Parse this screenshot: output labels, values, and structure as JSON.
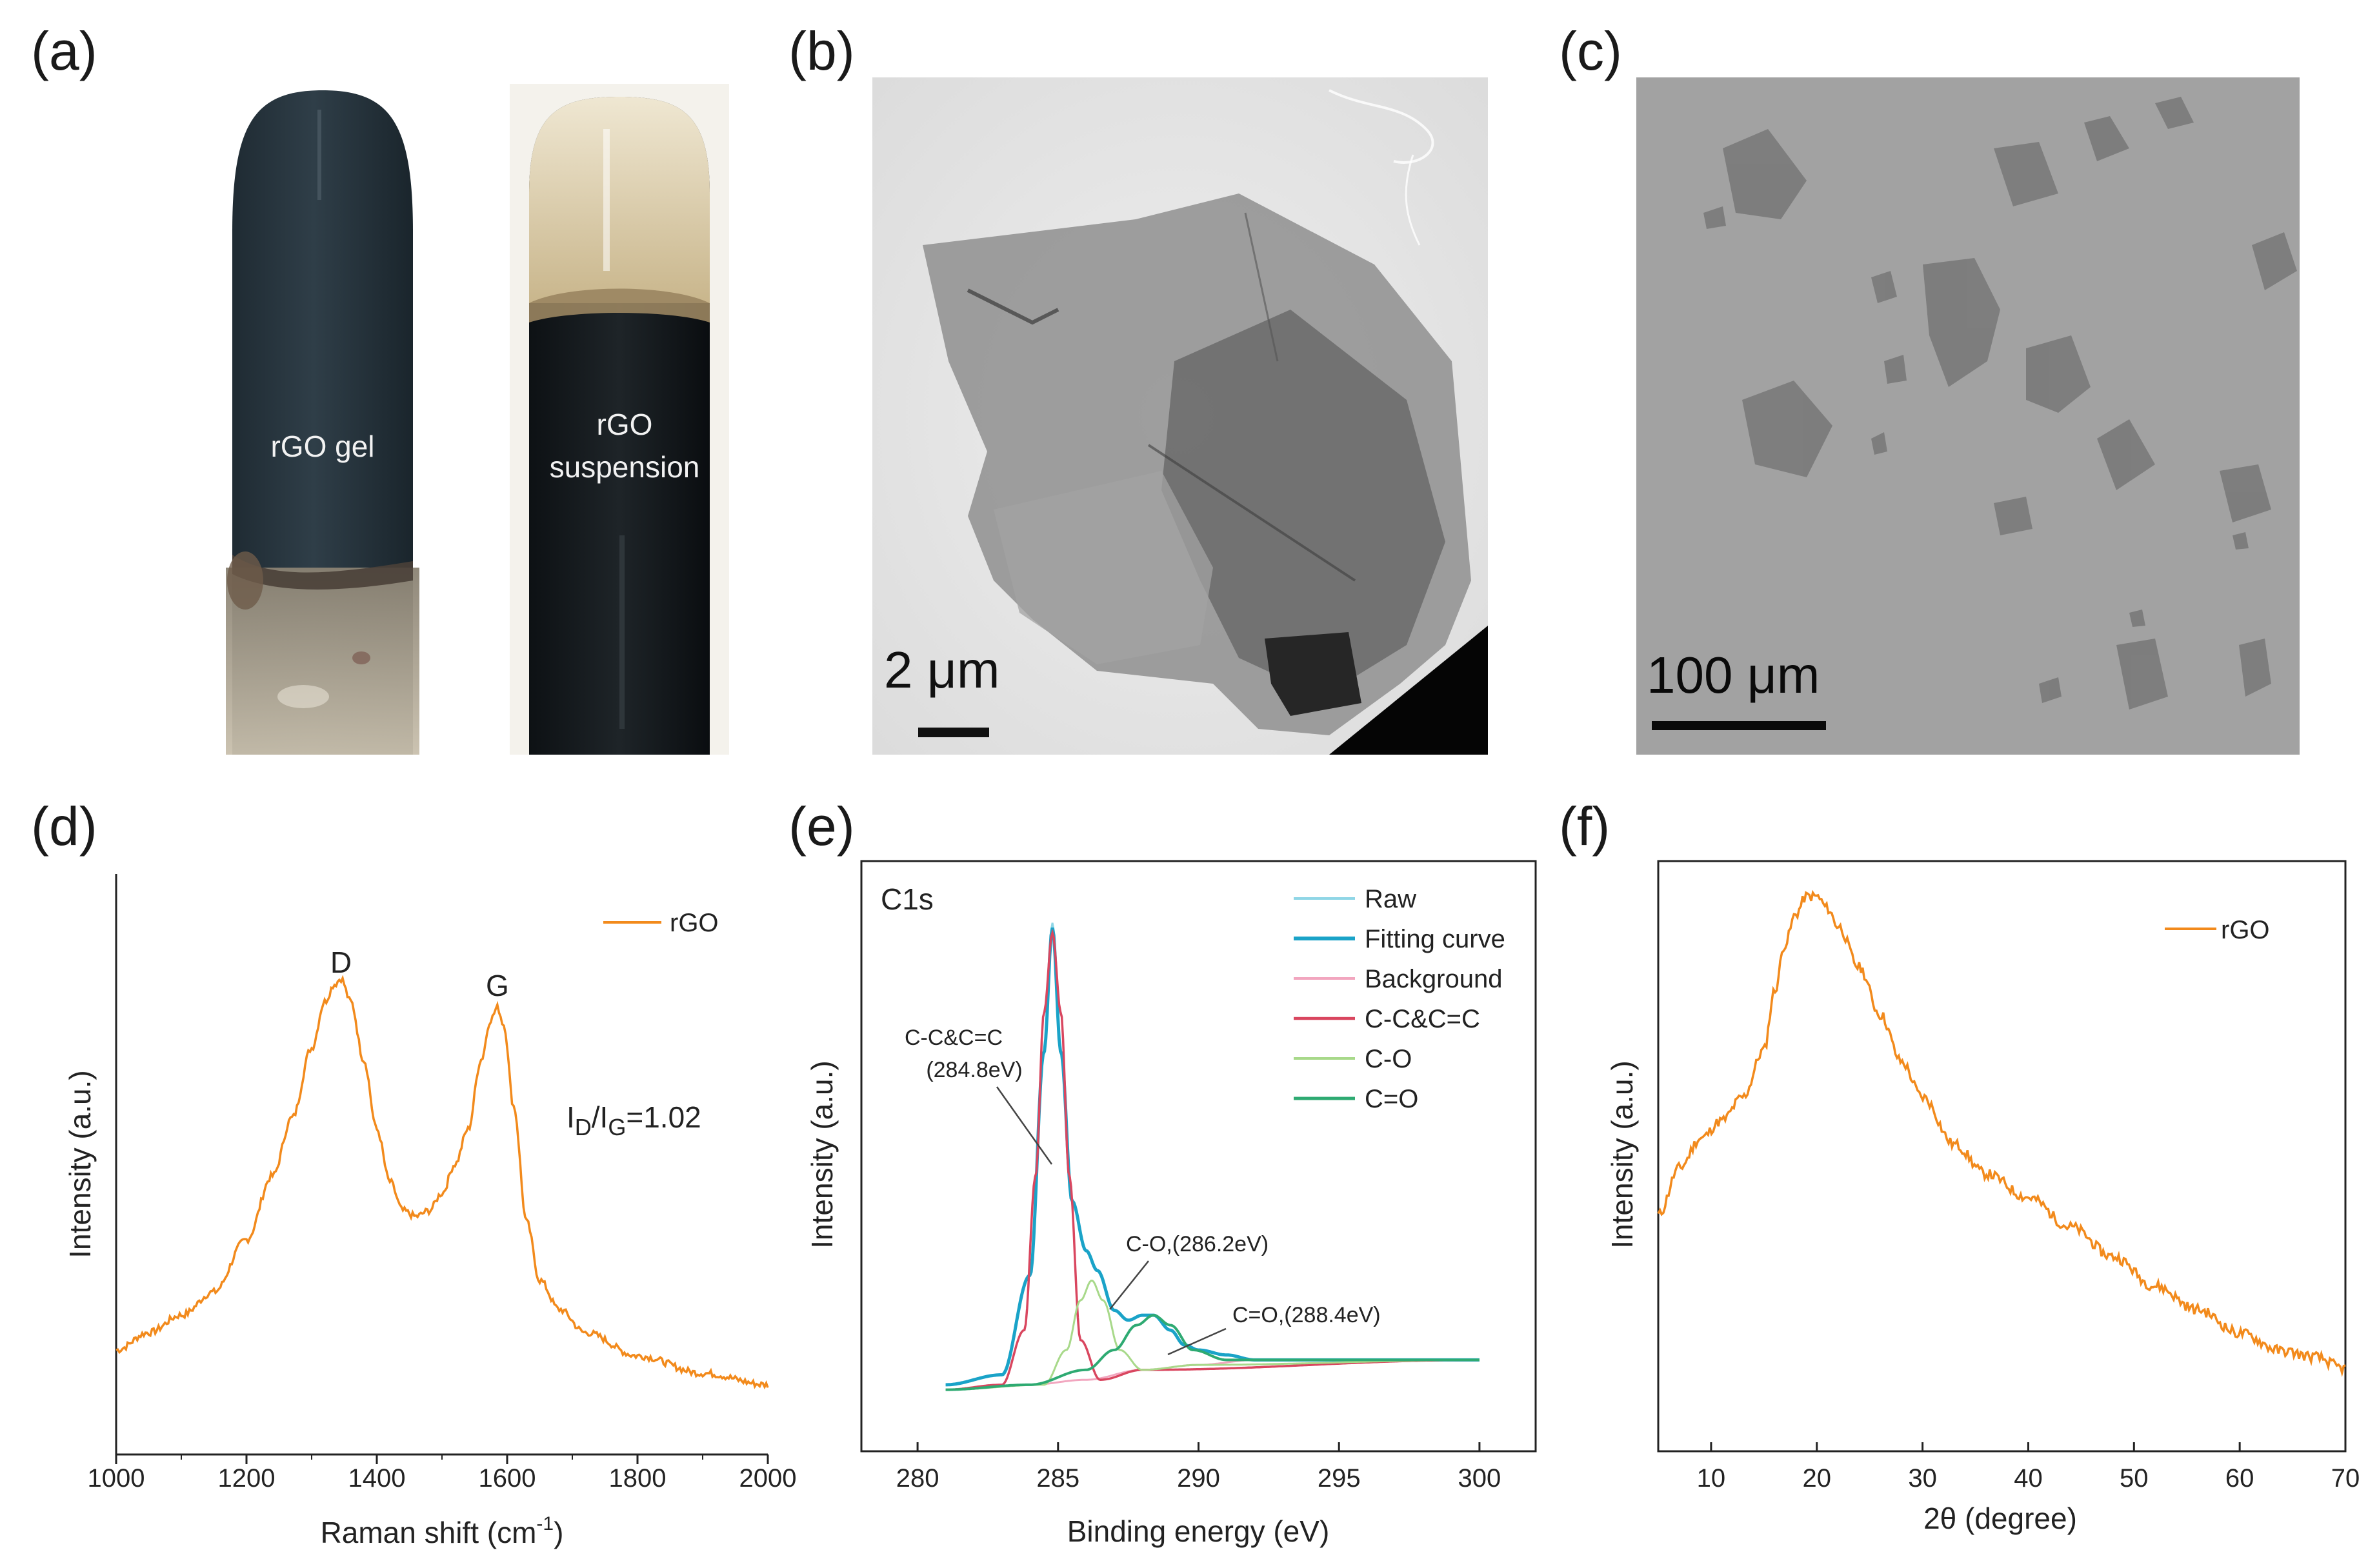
{
  "figure": {
    "panel_labels": {
      "a": "(a)",
      "b": "(b)",
      "c": "(c)",
      "d": "(d)",
      "e": "(e)",
      "f": "(f)"
    },
    "panel_a": {
      "left_vial_label": "rGO gel",
      "right_vial_label_line1": "rGO",
      "right_vial_label_line2": "suspension"
    },
    "panel_b": {
      "scale_bar": "2 μm"
    },
    "panel_c": {
      "scale_bar": "100 μm"
    },
    "colors": {
      "orange": "#f28a1c",
      "raw": "#8fd6e6",
      "fitting": "#1aa3c8",
      "background": "#f2a6bf",
      "cc": "#d9465f",
      "co": "#a8d98a",
      "cdo": "#2eaa72"
    }
  },
  "chart_data": [
    {
      "panel": "d",
      "type": "line",
      "title": "",
      "xlabel": "Raman shift (cm",
      "xlabel_sup": "-1",
      "xlabel_close": ")",
      "ylabel": "Intensity (a.u.)",
      "xlim": [
        1000,
        2000
      ],
      "ylim": [
        0,
        1
      ],
      "xticks": [
        "1000",
        "1200",
        "1400",
        "1600",
        "1800",
        "2000"
      ],
      "xtick_values": [
        1000,
        1200,
        1400,
        1600,
        1800,
        2000
      ],
      "legend": [
        "rGO"
      ],
      "peak_labels": [
        {
          "text": "D",
          "x": 1345,
          "y": 0.83
        },
        {
          "text": "G",
          "x": 1585,
          "y": 0.79
        }
      ],
      "ratio_label": {
        "I": "I",
        "sub1": "D",
        "slash": "/I",
        "sub2": "G",
        "value": "=1.02"
      },
      "series": [
        {
          "name": "rGO",
          "x": [
            1000,
            1050,
            1100,
            1150,
            1200,
            1240,
            1270,
            1300,
            1320,
            1335,
            1345,
            1360,
            1380,
            1400,
            1420,
            1440,
            1460,
            1480,
            1500,
            1520,
            1540,
            1560,
            1575,
            1585,
            1595,
            1610,
            1630,
            1650,
            1680,
            1720,
            1800,
            1900,
            2000
          ],
          "y": [
            0.18,
            0.21,
            0.24,
            0.28,
            0.37,
            0.48,
            0.58,
            0.7,
            0.78,
            0.81,
            0.82,
            0.78,
            0.68,
            0.56,
            0.47,
            0.42,
            0.41,
            0.42,
            0.45,
            0.5,
            0.56,
            0.68,
            0.75,
            0.77,
            0.74,
            0.6,
            0.4,
            0.3,
            0.25,
            0.21,
            0.17,
            0.14,
            0.12
          ]
        }
      ]
    },
    {
      "panel": "e",
      "type": "line",
      "title": "C1s",
      "xlabel": "Binding energy (eV)",
      "ylabel": "Intensity (a.u.)",
      "xlim": [
        278,
        302
      ],
      "ylim": [
        0,
        1
      ],
      "xticks": [
        "280",
        "285",
        "290",
        "295",
        "300"
      ],
      "xtick_values": [
        280,
        285,
        290,
        295,
        300
      ],
      "legend": [
        "Raw",
        "Fitting curve",
        "Background",
        "C-C&C=C",
        "C-O",
        "C=O"
      ],
      "annotations": [
        {
          "line1": "C-C&C=C",
          "line2": "(284.8eV)"
        },
        {
          "line1": "C-O,(286.2eV)"
        },
        {
          "line1": "C=O,(288.4eV)"
        }
      ],
      "series": [
        {
          "name": "Raw",
          "x": [
            281,
            283,
            284,
            284.5,
            284.8,
            285.1,
            285.5,
            286,
            286.4,
            287,
            287.5,
            288,
            288.4,
            289,
            289.5,
            290,
            291,
            292,
            294,
            297,
            300
          ],
          "y": [
            0.03,
            0.05,
            0.25,
            0.7,
            0.96,
            0.7,
            0.4,
            0.3,
            0.26,
            0.18,
            0.16,
            0.17,
            0.17,
            0.14,
            0.11,
            0.1,
            0.09,
            0.08,
            0.08,
            0.08,
            0.08
          ]
        },
        {
          "name": "Fitting curve",
          "x": [
            281,
            283,
            284,
            284.5,
            284.8,
            285.1,
            285.5,
            286,
            286.4,
            287,
            287.5,
            288,
            288.4,
            289,
            289.5,
            290,
            291,
            292,
            294,
            297,
            300
          ],
          "y": [
            0.03,
            0.05,
            0.25,
            0.7,
            0.95,
            0.7,
            0.4,
            0.3,
            0.26,
            0.18,
            0.16,
            0.17,
            0.17,
            0.14,
            0.11,
            0.1,
            0.09,
            0.08,
            0.08,
            0.08,
            0.08
          ]
        },
        {
          "name": "Background",
          "x": [
            281,
            284,
            286,
            288,
            290,
            292,
            295,
            300
          ],
          "y": [
            0.02,
            0.03,
            0.04,
            0.06,
            0.07,
            0.08,
            0.08,
            0.08
          ]
        },
        {
          "name": "C-C&C=C",
          "x": [
            281,
            283,
            283.8,
            284.2,
            284.5,
            284.8,
            285.1,
            285.4,
            285.8,
            286.5,
            288,
            300
          ],
          "y": [
            0.02,
            0.03,
            0.14,
            0.45,
            0.78,
            0.94,
            0.78,
            0.45,
            0.12,
            0.04,
            0.06,
            0.08
          ]
        },
        {
          "name": "C-O",
          "x": [
            281,
            284.5,
            285.3,
            285.8,
            286.2,
            286.6,
            287.2,
            288,
            290,
            300
          ],
          "y": [
            0.02,
            0.03,
            0.1,
            0.2,
            0.24,
            0.2,
            0.1,
            0.06,
            0.07,
            0.08
          ]
        },
        {
          "name": "C=O",
          "x": [
            281,
            284,
            286,
            287,
            287.8,
            288.4,
            289,
            289.8,
            291,
            300
          ],
          "y": [
            0.02,
            0.03,
            0.06,
            0.1,
            0.15,
            0.17,
            0.15,
            0.1,
            0.08,
            0.08
          ]
        }
      ]
    },
    {
      "panel": "f",
      "type": "line",
      "title": "",
      "xlabel": "2θ (degree)",
      "ylabel": "Intensity (a.u.)",
      "xlim": [
        5,
        70
      ],
      "ylim": [
        0,
        1
      ],
      "xticks": [
        "10",
        "20",
        "30",
        "40",
        "50",
        "60",
        "70"
      ],
      "xtick_values": [
        10,
        20,
        30,
        40,
        50,
        60,
        70
      ],
      "legend": [
        "rGO"
      ],
      "series": [
        {
          "name": "rGO",
          "x": [
            5,
            7,
            9,
            11,
            13,
            15,
            16,
            17,
            18,
            19,
            20,
            21,
            22,
            24,
            26,
            28,
            30,
            33,
            36,
            40,
            44,
            48,
            52,
            56,
            60,
            64,
            67,
            70
          ],
          "y": [
            0.4,
            0.48,
            0.53,
            0.56,
            0.6,
            0.68,
            0.78,
            0.86,
            0.91,
            0.94,
            0.94,
            0.92,
            0.89,
            0.82,
            0.74,
            0.66,
            0.6,
            0.52,
            0.47,
            0.43,
            0.38,
            0.33,
            0.28,
            0.24,
            0.2,
            0.17,
            0.16,
            0.14
          ]
        }
      ]
    }
  ]
}
